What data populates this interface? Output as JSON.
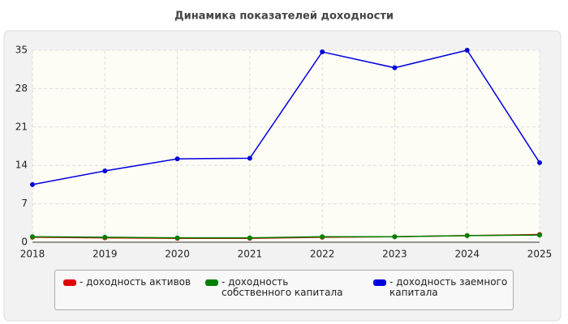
{
  "chart_data": {
    "type": "line",
    "title": "Динамика показателей доходности",
    "x": [
      2018,
      2019,
      2020,
      2021,
      2022,
      2023,
      2024,
      2025
    ],
    "xlim": [
      2018,
      2025
    ],
    "xticks": [
      2018,
      2019,
      2020,
      2021,
      2022,
      2023,
      2024,
      2025
    ],
    "ylim": [
      0,
      35
    ],
    "yticks": [
      0,
      7,
      14,
      21,
      28,
      35
    ],
    "grid": true,
    "series": [
      {
        "name": "- доходность активов",
        "color": "#e00000",
        "values": [
          0.9,
          0.8,
          0.7,
          0.7,
          0.9,
          1.0,
          1.2,
          1.4
        ]
      },
      {
        "name": "- доходность собственного капитала",
        "color": "#008000",
        "values": [
          1.0,
          0.9,
          0.8,
          0.8,
          1.0,
          1.0,
          1.2,
          1.3
        ]
      },
      {
        "name": "- доходность заемного капитала",
        "color": "#0000dd",
        "values": [
          10.5,
          13.0,
          15.2,
          15.3,
          34.7,
          31.8,
          35.0,
          14.5
        ]
      }
    ]
  }
}
